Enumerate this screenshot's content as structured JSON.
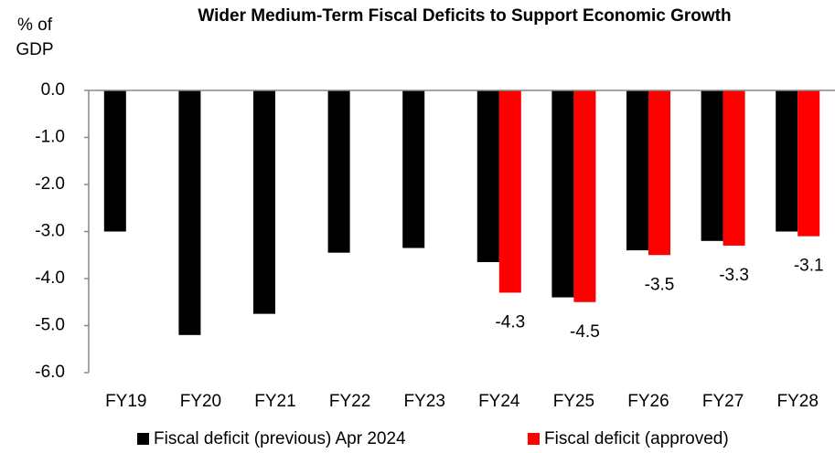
{
  "chart_data": {
    "type": "bar",
    "title": "Wider Medium-Term Fiscal Deficits to Support Economic Growth",
    "ylabel": "% of GDP",
    "categories": [
      "FY19",
      "FY20",
      "FY21",
      "FY22",
      "FY23",
      "FY24",
      "FY25",
      "FY26",
      "FY27",
      "FY28"
    ],
    "series": [
      {
        "name": "Fiscal deficit (previous) Apr 2024",
        "color": "#000000",
        "values": [
          -3.0,
          -5.2,
          -4.75,
          -3.45,
          -3.35,
          -3.65,
          -4.4,
          -3.4,
          -3.2,
          -3.0
        ]
      },
      {
        "name": "Fiscal deficit (approved)",
        "color": "#ff0000",
        "labels": true,
        "values": [
          null,
          null,
          null,
          null,
          null,
          -4.3,
          -4.5,
          -3.5,
          -3.3,
          -3.1
        ]
      }
    ],
    "ylim": [
      0,
      -6
    ],
    "yticks": [
      {
        "value": 0,
        "label": "0.0"
      },
      {
        "value": -1,
        "label": "-1.0"
      },
      {
        "value": -2,
        "label": "-2.0"
      },
      {
        "value": -3,
        "label": "-3.0"
      },
      {
        "value": -4,
        "label": "-4.0"
      },
      {
        "value": -5,
        "label": "-5.0"
      },
      {
        "value": -6,
        "label": "-6.0"
      }
    ],
    "legend": "bottom"
  }
}
